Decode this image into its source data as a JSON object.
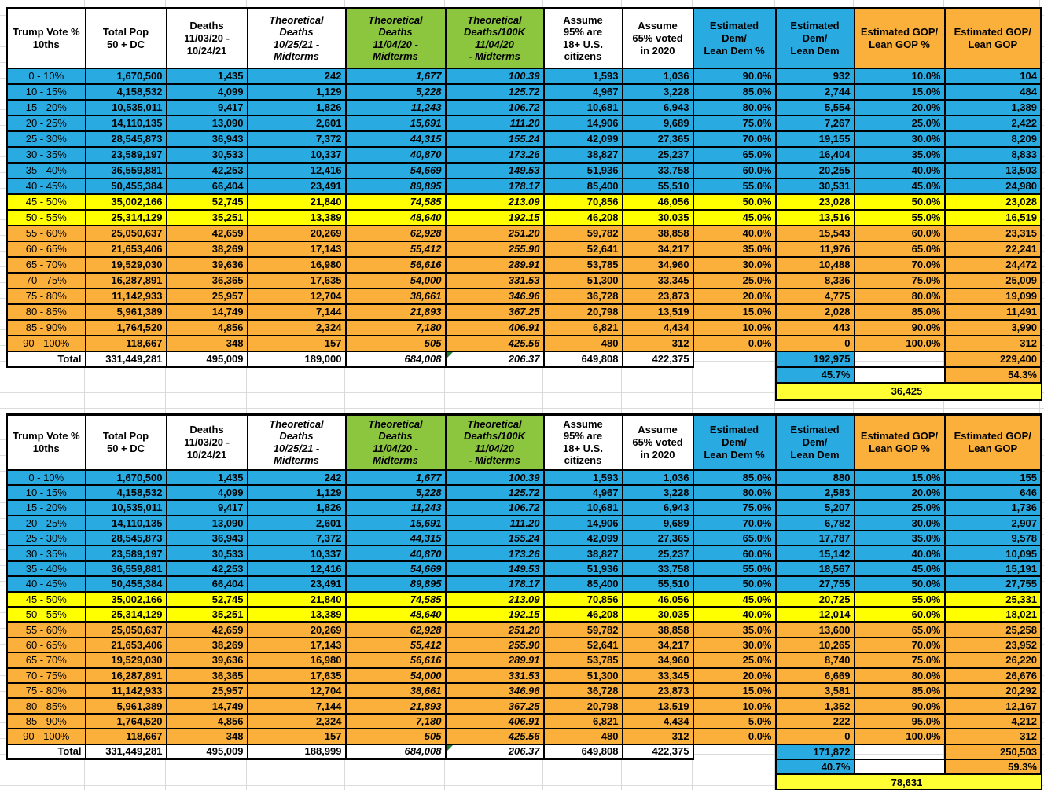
{
  "palette": {
    "dem_blue": "#29ABE2",
    "swing_yellow": "#FFFF00",
    "gop_orange": "#FBB03B",
    "header_green": "#8CC63F",
    "diff_yellow": "#FFFF33",
    "error_flag_green": "#1E7E34",
    "gridline_gray": "#DCDCDC"
  },
  "columns": [
    {
      "label": "Trump Vote %\n10ths",
      "bg": "white",
      "italic": false
    },
    {
      "label": "Total Pop\n50 + DC",
      "bg": "white",
      "italic": false
    },
    {
      "label": "Deaths\n11/03/20 -\n10/24/21",
      "bg": "white",
      "italic": false
    },
    {
      "label": "Theoretical\nDeaths\n10/25/21 -\nMidterms",
      "bg": "white",
      "italic": true
    },
    {
      "label": "Theoretical\nDeaths\n11/04/20 -\nMidterms",
      "bg": "green",
      "italic": true
    },
    {
      "label": "Theoretical\nDeaths/100K\n11/04/20\n- Midterms",
      "bg": "green",
      "italic": true
    },
    {
      "label": "Assume\n95% are\n18+ U.S.\ncitizens",
      "bg": "white",
      "italic": false
    },
    {
      "label": "Assume\n65% voted\nin 2020",
      "bg": "white",
      "italic": false
    },
    {
      "label": "Estimated\nDem/\nLean Dem %",
      "bg": "blue",
      "italic": false
    },
    {
      "label": "Estimated\nDem/\nLean Dem",
      "bg": "blue",
      "italic": false
    },
    {
      "label": "Estimated GOP/\nLean GOP %",
      "bg": "orange",
      "italic": false
    },
    {
      "label": "Estimated GOP/\nLean GOP",
      "bg": "orange",
      "italic": false
    }
  ],
  "row_bands": [
    "dem",
    "dem",
    "dem",
    "dem",
    "dem",
    "dem",
    "dem",
    "dem",
    "swing",
    "swing",
    "gop",
    "gop",
    "gop",
    "gop",
    "gop",
    "gop",
    "gop",
    "gop"
  ],
  "tables": [
    {
      "rows": [
        [
          "0 - 10%",
          "1,670,500",
          "1,435",
          "242",
          "1,677",
          "100.39",
          "1,593",
          "1,036",
          "90.0%",
          "932",
          "10.0%",
          "104"
        ],
        [
          "10 - 15%",
          "4,158,532",
          "4,099",
          "1,129",
          "5,228",
          "125.72",
          "4,967",
          "3,228",
          "85.0%",
          "2,744",
          "15.0%",
          "484"
        ],
        [
          "15 - 20%",
          "10,535,011",
          "9,417",
          "1,826",
          "11,243",
          "106.72",
          "10,681",
          "6,943",
          "80.0%",
          "5,554",
          "20.0%",
          "1,389"
        ],
        [
          "20 - 25%",
          "14,110,135",
          "13,090",
          "2,601",
          "15,691",
          "111.20",
          "14,906",
          "9,689",
          "75.0%",
          "7,267",
          "25.0%",
          "2,422"
        ],
        [
          "25 - 30%",
          "28,545,873",
          "36,943",
          "7,372",
          "44,315",
          "155.24",
          "42,099",
          "27,365",
          "70.0%",
          "19,155",
          "30.0%",
          "8,209"
        ],
        [
          "30 - 35%",
          "23,589,197",
          "30,533",
          "10,337",
          "40,870",
          "173.26",
          "38,827",
          "25,237",
          "65.0%",
          "16,404",
          "35.0%",
          "8,833"
        ],
        [
          "35 - 40%",
          "36,559,881",
          "42,253",
          "12,416",
          "54,669",
          "149.53",
          "51,936",
          "33,758",
          "60.0%",
          "20,255",
          "40.0%",
          "13,503"
        ],
        [
          "40 - 45%",
          "50,455,384",
          "66,404",
          "23,491",
          "89,895",
          "178.17",
          "85,400",
          "55,510",
          "55.0%",
          "30,531",
          "45.0%",
          "24,980"
        ],
        [
          "45 - 50%",
          "35,002,166",
          "52,745",
          "21,840",
          "74,585",
          "213.09",
          "70,856",
          "46,056",
          "50.0%",
          "23,028",
          "50.0%",
          "23,028"
        ],
        [
          "50 - 55%",
          "25,314,129",
          "35,251",
          "13,389",
          "48,640",
          "192.15",
          "46,208",
          "30,035",
          "45.0%",
          "13,516",
          "55.0%",
          "16,519"
        ],
        [
          "55 - 60%",
          "25,050,637",
          "42,659",
          "20,269",
          "62,928",
          "251.20",
          "59,782",
          "38,858",
          "40.0%",
          "15,543",
          "60.0%",
          "23,315"
        ],
        [
          "60 - 65%",
          "21,653,406",
          "38,269",
          "17,143",
          "55,412",
          "255.90",
          "52,641",
          "34,217",
          "35.0%",
          "11,976",
          "65.0%",
          "22,241"
        ],
        [
          "65 - 70%",
          "19,529,030",
          "39,636",
          "16,980",
          "56,616",
          "289.91",
          "53,785",
          "34,960",
          "30.0%",
          "10,488",
          "70.0%",
          "24,472"
        ],
        [
          "70 - 75%",
          "16,287,891",
          "36,365",
          "17,635",
          "54,000",
          "331.53",
          "51,300",
          "33,345",
          "25.0%",
          "8,336",
          "75.0%",
          "25,009"
        ],
        [
          "75 - 80%",
          "11,142,933",
          "25,957",
          "12,704",
          "38,661",
          "346.96",
          "36,728",
          "23,873",
          "20.0%",
          "4,775",
          "80.0%",
          "19,099"
        ],
        [
          "80 - 85%",
          "5,961,389",
          "14,749",
          "7,144",
          "21,893",
          "367.25",
          "20,798",
          "13,519",
          "15.0%",
          "2,028",
          "85.0%",
          "11,491"
        ],
        [
          "85 - 90%",
          "1,764,520",
          "4,856",
          "2,324",
          "7,180",
          "406.91",
          "6,821",
          "4,434",
          "10.0%",
          "443",
          "90.0%",
          "3,990"
        ],
        [
          "90 - 100%",
          "118,667",
          "348",
          "157",
          "505",
          "425.56",
          "480",
          "312",
          "0.0%",
          "0",
          "100.0%",
          "312"
        ]
      ],
      "total": [
        "Total",
        "331,449,281",
        "495,009",
        "189,000",
        "684,008",
        "206.37",
        "649,808",
        "422,375",
        "",
        "192,975",
        "",
        "229,400"
      ],
      "dem_share": "45.7%",
      "gop_share": "54.3%",
      "difference": "36,425"
    },
    {
      "rows": [
        [
          "0 - 10%",
          "1,670,500",
          "1,435",
          "242",
          "1,677",
          "100.39",
          "1,593",
          "1,036",
          "85.0%",
          "880",
          "15.0%",
          "155"
        ],
        [
          "10 - 15%",
          "4,158,532",
          "4,099",
          "1,129",
          "5,228",
          "125.72",
          "4,967",
          "3,228",
          "80.0%",
          "2,583",
          "20.0%",
          "646"
        ],
        [
          "15 - 20%",
          "10,535,011",
          "9,417",
          "1,826",
          "11,243",
          "106.72",
          "10,681",
          "6,943",
          "75.0%",
          "5,207",
          "25.0%",
          "1,736"
        ],
        [
          "20 - 25%",
          "14,110,135",
          "13,090",
          "2,601",
          "15,691",
          "111.20",
          "14,906",
          "9,689",
          "70.0%",
          "6,782",
          "30.0%",
          "2,907"
        ],
        [
          "25 - 30%",
          "28,545,873",
          "36,943",
          "7,372",
          "44,315",
          "155.24",
          "42,099",
          "27,365",
          "65.0%",
          "17,787",
          "35.0%",
          "9,578"
        ],
        [
          "30 - 35%",
          "23,589,197",
          "30,533",
          "10,337",
          "40,870",
          "173.26",
          "38,827",
          "25,237",
          "60.0%",
          "15,142",
          "40.0%",
          "10,095"
        ],
        [
          "35 - 40%",
          "36,559,881",
          "42,253",
          "12,416",
          "54,669",
          "149.53",
          "51,936",
          "33,758",
          "55.0%",
          "18,567",
          "45.0%",
          "15,191"
        ],
        [
          "40 - 45%",
          "50,455,384",
          "66,404",
          "23,491",
          "89,895",
          "178.17",
          "85,400",
          "55,510",
          "50.0%",
          "27,755",
          "50.0%",
          "27,755"
        ],
        [
          "45 - 50%",
          "35,002,166",
          "52,745",
          "21,840",
          "74,585",
          "213.09",
          "70,856",
          "46,056",
          "45.0%",
          "20,725",
          "55.0%",
          "25,331"
        ],
        [
          "50 - 55%",
          "25,314,129",
          "35,251",
          "13,389",
          "48,640",
          "192.15",
          "46,208",
          "30,035",
          "40.0%",
          "12,014",
          "60.0%",
          "18,021"
        ],
        [
          "55 - 60%",
          "25,050,637",
          "42,659",
          "20,269",
          "62,928",
          "251.20",
          "59,782",
          "38,858",
          "35.0%",
          "13,600",
          "65.0%",
          "25,258"
        ],
        [
          "60 - 65%",
          "21,653,406",
          "38,269",
          "17,143",
          "55,412",
          "255.90",
          "52,641",
          "34,217",
          "30.0%",
          "10,265",
          "70.0%",
          "23,952"
        ],
        [
          "65 - 70%",
          "19,529,030",
          "39,636",
          "16,980",
          "56,616",
          "289.91",
          "53,785",
          "34,960",
          "25.0%",
          "8,740",
          "75.0%",
          "26,220"
        ],
        [
          "70 - 75%",
          "16,287,891",
          "36,365",
          "17,635",
          "54,000",
          "331.53",
          "51,300",
          "33,345",
          "20.0%",
          "6,669",
          "80.0%",
          "26,676"
        ],
        [
          "75 - 80%",
          "11,142,933",
          "25,957",
          "12,704",
          "38,661",
          "346.96",
          "36,728",
          "23,873",
          "15.0%",
          "3,581",
          "85.0%",
          "20,292"
        ],
        [
          "80 - 85%",
          "5,961,389",
          "14,749",
          "7,144",
          "21,893",
          "367.25",
          "20,798",
          "13,519",
          "10.0%",
          "1,352",
          "90.0%",
          "12,167"
        ],
        [
          "85 - 90%",
          "1,764,520",
          "4,856",
          "2,324",
          "7,180",
          "406.91",
          "6,821",
          "4,434",
          "5.0%",
          "222",
          "95.0%",
          "4,212"
        ],
        [
          "90 - 100%",
          "118,667",
          "348",
          "157",
          "505",
          "425.56",
          "480",
          "312",
          "0.0%",
          "0",
          "100.0%",
          "312"
        ]
      ],
      "total": [
        "Total",
        "331,449,281",
        "495,009",
        "188,999",
        "684,008",
        "206.37",
        "649,808",
        "422,375",
        "",
        "171,872",
        "",
        "250,503"
      ],
      "dem_share": "40.7%",
      "gop_share": "59.3%",
      "difference": "78,631"
    }
  ]
}
